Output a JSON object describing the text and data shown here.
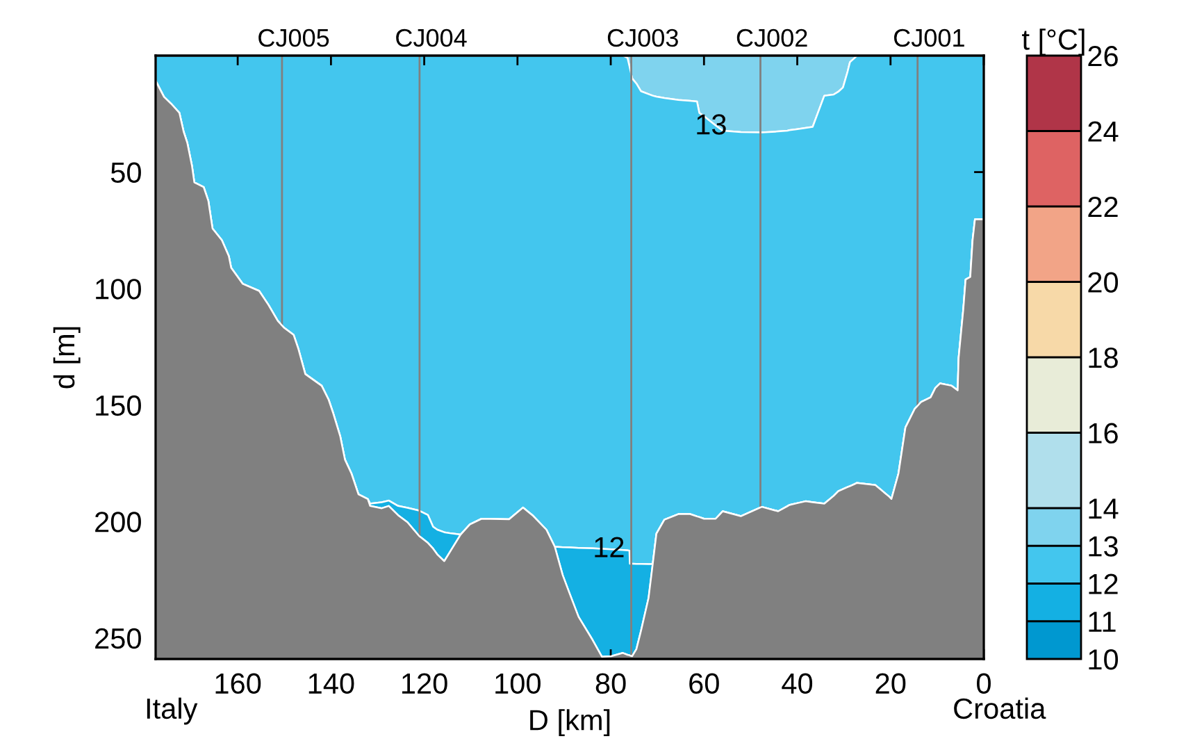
{
  "chart_data": {
    "type": "area",
    "stacked": true,
    "xlabel": "D [km]",
    "ylabel": "d [m]",
    "clabel": "t [°C]",
    "x": [
      177.6,
      175.8,
      174.3,
      172.5,
      171.6,
      170.8,
      169.8,
      169.3,
      167.3,
      166.3,
      165.4,
      163.4,
      161.9,
      161.4,
      158.9,
      155.4,
      153.4,
      151.4,
      150.0,
      148.0,
      147.0,
      145.5,
      142.0,
      140.5,
      139.5,
      138.0,
      137.0,
      135.6,
      134.1,
      132.1,
      131.6,
      129.1,
      127.6,
      125.6,
      123.6,
      121.1,
      119.2,
      118.1,
      117.2,
      115.7,
      114.2,
      112.2,
      110.2,
      107.7,
      101.8,
      98.8,
      96.8,
      93.8,
      92.0,
      90.3,
      88.8,
      86.9,
      83.9,
      81.9,
      79.9,
      77.4,
      76.4,
      76.0,
      75.9,
      75.4,
      74.5,
      73.5,
      71.9,
      71.0,
      70.2,
      68.5,
      65.5,
      63.0,
      61.5,
      61.0,
      60.0,
      57.5,
      56.0,
      52.1,
      47.6,
      44.7,
      44.6,
      44.1,
      42.1,
      41.7,
      40.2,
      38.2,
      36.7,
      34.2,
      32.2,
      31.2,
      30.2,
      29.2,
      28.7,
      27.7,
      27.2,
      23.3,
      20.3,
      19.8,
      18.3,
      16.8,
      14.8,
      13.4,
      11.4,
      10.4,
      9.4,
      6.9,
      5.6,
      5.4,
      4.4,
      3.9,
      2.9,
      2.4,
      1.9,
      0.0
    ],
    "series": [
      {
        "color": "#7fd3ee",
        "values": [
          0,
          0,
          0,
          0,
          0,
          0,
          0,
          0,
          0,
          0,
          0,
          0,
          0,
          0,
          0,
          0,
          0,
          0,
          0,
          0,
          0,
          0,
          0,
          0,
          0,
          0,
          0,
          0,
          0,
          0,
          0,
          0,
          0,
          0,
          0,
          0,
          0,
          0,
          0,
          0,
          0,
          0,
          0,
          0,
          0,
          0,
          0,
          0,
          0,
          0,
          0,
          0,
          0,
          0,
          0,
          0,
          1.0,
          4.5,
          5.4,
          9.8,
          12.0,
          15.3,
          16.5,
          17.2,
          17.6,
          18.2,
          19.0,
          19.4,
          19.7,
          24.6,
          26.0,
          30.0,
          32.2,
          32.8,
          33.0,
          32.7,
          32.6,
          32.5,
          32.2,
          32.0,
          31.6,
          31.0,
          30.6,
          17.2,
          16.7,
          15.5,
          13.7,
          6.8,
          2.8,
          1.0,
          0,
          0,
          0,
          0,
          0,
          0,
          0,
          0,
          0,
          0,
          0,
          0,
          0,
          0,
          0,
          0,
          0,
          0,
          0,
          0
        ]
      },
      {
        "color": "#43c6ee",
        "values": [
          10.8,
          17.7,
          20.6,
          24.6,
          32.6,
          37.5,
          47.4,
          54.4,
          56.4,
          62.3,
          74.2,
          79.2,
          86.1,
          91.1,
          98.0,
          101.0,
          107.0,
          113.9,
          116.9,
          119.9,
          125.8,
          136.7,
          141.7,
          147.7,
          153.6,
          163.5,
          173.4,
          179.4,
          188.3,
          190.3,
          192.3,
          191.7,
          191.0,
          193.3,
          194.1,
          195.3,
          197.2,
          202.2,
          203.5,
          204.6,
          205.1,
          205.6,
          201.2,
          198.8,
          199.0,
          194.0,
          197.3,
          203.5,
          210.8,
          211.0,
          211.1,
          211.3,
          211.5,
          211.7,
          211.9,
          212.2,
          211.4,
          208.0,
          212.7,
          208.3,
          206.2,
          202.9,
          201.8,
          201.1,
          187.6,
          181.0,
          177.8,
          177.4,
          178.1,
          173.5,
          172.8,
          168.8,
          163.4,
          164.9,
          160.7,
          162.6,
          162.7,
          163.1,
          161.2,
          160.9,
          160.6,
          160.3,
          161.1,
          175.1,
          172.3,
          171.5,
          172.4,
          178.4,
          182.0,
          182.9,
          183.4,
          184.3,
          189.3,
          190.3,
          179.4,
          159.6,
          151.6,
          148.6,
          146.7,
          142.7,
          140.7,
          141.7,
          143.7,
          129.8,
          109.0,
          96.1,
          95.0,
          79.2,
          70.3,
          70.3
        ]
      },
      {
        "color": "#14b0e3",
        "values": [
          0,
          0,
          0,
          0,
          0,
          0,
          0,
          0,
          0,
          0,
          0,
          0,
          0,
          0,
          0,
          0,
          0,
          0,
          0,
          0,
          0,
          0,
          0,
          0,
          0,
          0,
          0,
          0,
          0,
          0,
          1.0,
          2.6,
          2.3,
          4.0,
          6.2,
          10.9,
          12.0,
          9.4,
          10.6,
          12.4,
          7.0,
          0,
          0,
          0,
          0,
          0,
          0,
          0,
          0,
          12.0,
          19.9,
          29.6,
          39.3,
          46.3,
          45.9,
          44.2,
          44.8,
          44.9,
          39.4,
          39.7,
          36.6,
          28.6,
          14.6,
          0,
          0,
          0,
          0,
          0,
          0,
          0,
          0,
          0,
          0,
          0,
          0,
          0,
          0,
          0,
          0,
          0,
          0,
          0,
          0,
          0,
          0,
          0,
          0,
          0,
          0,
          0,
          0,
          0,
          0,
          0,
          0,
          0,
          0,
          0,
          0,
          0,
          0,
          0,
          0,
          0,
          0,
          0,
          0,
          0,
          0,
          0
        ]
      },
      {
        "color": "#808080",
        "values": [
          248.2,
          241.3,
          238.4,
          234.4,
          226.4,
          221.5,
          211.6,
          204.6,
          202.6,
          196.7,
          184.8,
          179.8,
          172.9,
          167.9,
          161.0,
          158.0,
          152.0,
          145.1,
          142.1,
          139.1,
          133.2,
          122.3,
          117.3,
          111.3,
          105.4,
          95.5,
          85.6,
          79.6,
          70.7,
          68.7,
          65.7,
          64.7,
          65.7,
          61.7,
          58.7,
          52.8,
          49.8,
          47.4,
          44.9,
          42.0,
          46.9,
          53.4,
          57.8,
          60.2,
          60.0,
          65.0,
          61.7,
          55.5,
          48.2,
          36.0,
          28.0,
          18.1,
          8.2,
          1.0,
          1.2,
          2.6,
          1.8,
          1.6,
          1.5,
          1.2,
          4.2,
          12.2,
          26.1,
          40.7,
          53.8,
          59.8,
          62.2,
          62.2,
          61.2,
          60.9,
          60.2,
          60.2,
          63.4,
          61.3,
          65.3,
          63.7,
          63.7,
          63.4,
          65.6,
          66.1,
          66.8,
          67.7,
          67.3,
          66.7,
          70.0,
          72.0,
          72.9,
          73.8,
          74.2,
          75.1,
          75.6,
          74.7,
          69.7,
          68.7,
          79.6,
          99.4,
          107.4,
          110.4,
          112.3,
          116.3,
          118.3,
          117.3,
          115.3,
          129.2,
          150.0,
          162.9,
          164.0,
          179.8,
          188.7,
          188.7
        ]
      }
    ],
    "xlim": [
      177.6,
      0
    ],
    "xticks": [
      160,
      140,
      120,
      100,
      80,
      60,
      40,
      20,
      0
    ],
    "ylim": [
      259,
      0
    ],
    "yticks": [
      50,
      100,
      150,
      200,
      250
    ],
    "clim": [
      10,
      26
    ],
    "cticks": [
      10,
      11,
      12,
      13,
      14,
      16,
      18,
      20,
      22,
      24,
      26
    ],
    "colors": [
      "#0098d0",
      "#14b0e3",
      "#43c6ee",
      "#7fd3ee",
      "#b0dfec",
      "#e8ecd8",
      "#f7d9a8",
      "#f2a487",
      "#de6363",
      "#b03548"
    ],
    "ref_lines": [
      {
        "axis": "x",
        "value": 150.5,
        "label": "CJ005",
        "color": "#808080"
      },
      {
        "axis": "x",
        "value": 121.0,
        "label": "CJ004",
        "color": "#808080"
      },
      {
        "axis": "x",
        "value": 75.6,
        "label": "CJ003",
        "color": "#808080"
      },
      {
        "axis": "x",
        "value": 47.9,
        "label": "CJ002",
        "color": "#808080"
      },
      {
        "axis": "x",
        "value": 14.2,
        "label": "CJ001",
        "color": "#808080"
      }
    ],
    "annotations": [
      {
        "text": "13",
        "x": 58.5,
        "y": 30.6
      },
      {
        "text": "12",
        "x": 80.4,
        "y": 212.1
      },
      "Italy",
      "Croatia"
    ]
  }
}
